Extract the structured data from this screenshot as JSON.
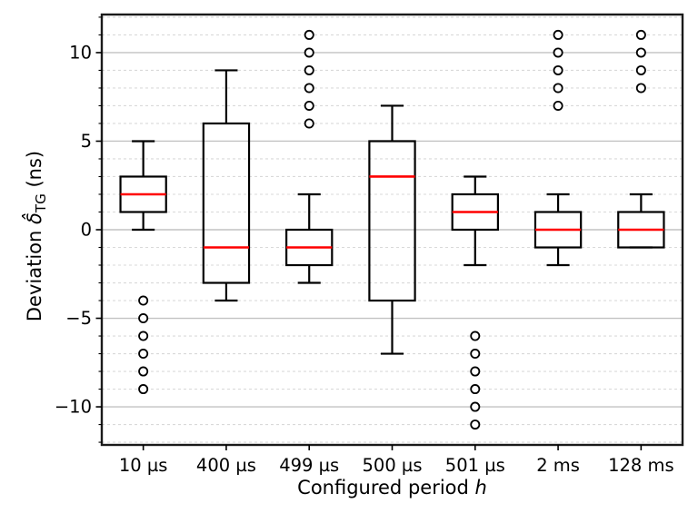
{
  "chart_data": {
    "type": "boxplot",
    "title": "",
    "xlabel": {
      "prefix": "Configured period ",
      "symbol": "h"
    },
    "ylabel": {
      "prefix": "Deviation ",
      "symbol": "δ̂",
      "subscript": "TG",
      "suffix": " (ns)"
    },
    "categories": [
      "10 µs",
      "400 µs",
      "499 µs",
      "500 µs",
      "501 µs",
      "2 ms",
      "128 ms"
    ],
    "ylim": [
      -12.15,
      12.15
    ],
    "yticks": [
      {
        "value": -10,
        "label": "−10"
      },
      {
        "value": -5,
        "label": "−5"
      },
      {
        "value": 0,
        "label": "0"
      },
      {
        "value": 5,
        "label": "5"
      },
      {
        "value": 10,
        "label": "10"
      }
    ],
    "minor_tick_step": 1,
    "grid": {
      "major_style": "solid",
      "minor_style": "dashed",
      "minor_every": 1
    },
    "series": [
      {
        "category": "10 µs",
        "whisker_low": 0,
        "q1": 1,
        "median": 2,
        "q3": 3,
        "whisker_high": 5,
        "outliers": [
          -4,
          -5,
          -6,
          -7,
          -8,
          -9
        ]
      },
      {
        "category": "400 µs",
        "whisker_low": -4,
        "q1": -3,
        "median": -1,
        "q3": 6,
        "whisker_high": 9,
        "outliers": []
      },
      {
        "category": "499 µs",
        "whisker_low": -3,
        "q1": -2,
        "median": -1,
        "q3": 0,
        "whisker_high": 2,
        "outliers": [
          6,
          7,
          8,
          9,
          10,
          11
        ]
      },
      {
        "category": "500 µs",
        "whisker_low": -7,
        "q1": -4,
        "median": 3,
        "q3": 5,
        "whisker_high": 7,
        "outliers": []
      },
      {
        "category": "501 µs",
        "whisker_low": -2,
        "q1": 0,
        "median": 1,
        "q3": 2,
        "whisker_high": 3,
        "outliers": [
          -6,
          -7,
          -8,
          -9,
          -10,
          -11
        ]
      },
      {
        "category": "2 ms",
        "whisker_low": -2,
        "q1": -1,
        "median": 0,
        "q3": 1,
        "whisker_high": 2,
        "outliers": [
          7,
          8,
          9,
          10,
          11
        ]
      },
      {
        "category": "128 ms",
        "whisker_low": -1,
        "q1": -1,
        "median": 0,
        "q3": 1,
        "whisker_high": 2,
        "outliers": [
          8,
          9,
          10,
          11
        ]
      }
    ],
    "colors": {
      "background": "#ffffff",
      "box": "#000000",
      "median": "#ff0000",
      "whisker": "#000000",
      "outlier": "#000000",
      "grid_major": "#c2c2c2",
      "grid_minor": "#d9d9d9",
      "spine": "#1a1a1a",
      "tick": "#000000",
      "tick_text": "#000000"
    }
  }
}
